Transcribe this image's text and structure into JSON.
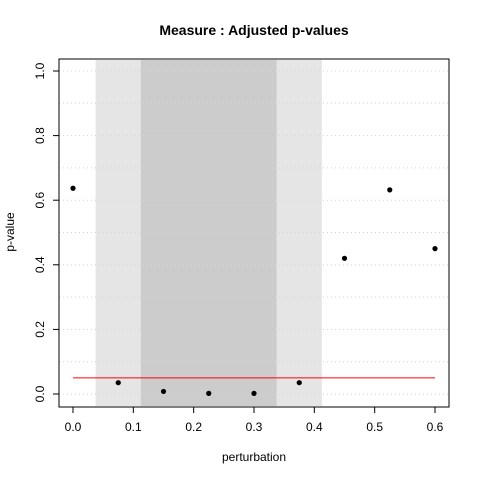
{
  "chart_data": {
    "type": "scatter",
    "title": "Measure : Adjusted p-values",
    "xlabel": "perturbation",
    "ylabel": "p-value",
    "xlim": [
      0.0,
      0.6
    ],
    "ylim": [
      0.0,
      1.0
    ],
    "x_ticks": [
      "0.0",
      "0.1",
      "0.2",
      "0.3",
      "0.4",
      "0.5",
      "0.6"
    ],
    "y_ticks": [
      "0.0",
      "0.2",
      "0.4",
      "0.6",
      "0.8",
      "1.0"
    ],
    "grid": true,
    "points": [
      {
        "x": 0.0,
        "y": 0.637
      },
      {
        "x": 0.075,
        "y": 0.035
      },
      {
        "x": 0.15,
        "y": 0.008
      },
      {
        "x": 0.225,
        "y": 0.002
      },
      {
        "x": 0.3,
        "y": 0.002
      },
      {
        "x": 0.375,
        "y": 0.035
      },
      {
        "x": 0.45,
        "y": 0.42
      },
      {
        "x": 0.525,
        "y": 0.632
      },
      {
        "x": 0.6,
        "y": 0.45
      }
    ],
    "threshold": {
      "y": 0.05,
      "x_from": 0.0,
      "x_to": 0.6,
      "color": "#ff0000"
    },
    "shaded_regions": [
      {
        "x_from": 0.0375,
        "x_to": 0.4125,
        "color": "#e5e5e5"
      },
      {
        "x_from": 0.1125,
        "x_to": 0.3375,
        "color": "#cccccc"
      }
    ]
  }
}
